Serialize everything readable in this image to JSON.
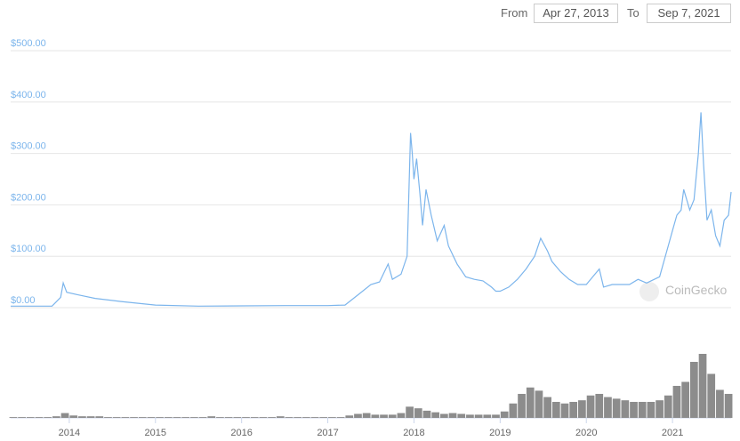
{
  "header": {
    "from_label": "From",
    "from_date": "Apr 27, 2013",
    "to_label": "To",
    "to_date": "Sep 7, 2021"
  },
  "chart_data": {
    "type": "line",
    "watermark": "CoinGecko",
    "xlim": [
      2013.32,
      2021.68
    ],
    "xticks": [
      2014,
      2015,
      2016,
      2017,
      2018,
      2019,
      2020,
      2021
    ],
    "ylim": [
      0,
      500
    ],
    "yticks": [
      {
        "value": 0,
        "label": "$0.00"
      },
      {
        "value": 100,
        "label": "$100.00"
      },
      {
        "value": 200,
        "label": "$200.00"
      },
      {
        "value": 300,
        "label": "$300.00"
      },
      {
        "value": 400,
        "label": "$400.00"
      },
      {
        "value": 500,
        "label": "$500.00"
      }
    ],
    "y2lim": [
      0,
      100
    ],
    "grid": true,
    "series": [
      {
        "type": "line",
        "color": "#7cb5ec",
        "x": [
          2013.32,
          2013.8,
          2013.9,
          2013.93,
          2013.97,
          2014.1,
          2014.3,
          2014.6,
          2015.0,
          2015.5,
          2016.0,
          2016.5,
          2017.0,
          2017.2,
          2017.35,
          2017.5,
          2017.6,
          2017.7,
          2017.75,
          2017.85,
          2017.92,
          2017.96,
          2017.98,
          2018.0,
          2018.03,
          2018.07,
          2018.1,
          2018.14,
          2018.2,
          2018.27,
          2018.35,
          2018.4,
          2018.5,
          2018.6,
          2018.7,
          2018.8,
          2018.9,
          2018.95,
          2019.0,
          2019.1,
          2019.2,
          2019.3,
          2019.4,
          2019.47,
          2019.55,
          2019.6,
          2019.7,
          2019.8,
          2019.9,
          2020.0,
          2020.1,
          2020.15,
          2020.2,
          2020.3,
          2020.5,
          2020.6,
          2020.7,
          2020.85,
          2020.95,
          2021.0,
          2021.05,
          2021.1,
          2021.13,
          2021.2,
          2021.25,
          2021.3,
          2021.33,
          2021.36,
          2021.4,
          2021.45,
          2021.5,
          2021.55,
          2021.6,
          2021.65,
          2021.68
        ],
        "values": [
          3,
          3,
          20,
          48,
          30,
          25,
          18,
          12,
          5,
          3,
          3.5,
          4,
          4,
          5,
          25,
          45,
          50,
          85,
          55,
          65,
          100,
          340,
          300,
          250,
          290,
          220,
          160,
          230,
          180,
          130,
          160,
          120,
          85,
          60,
          55,
          52,
          40,
          32,
          32,
          40,
          55,
          75,
          100,
          135,
          110,
          90,
          70,
          55,
          45,
          45,
          65,
          75,
          40,
          45,
          45,
          55,
          48,
          60,
          120,
          150,
          180,
          190,
          230,
          190,
          210,
          300,
          380,
          280,
          170,
          190,
          140,
          120,
          170,
          180,
          225
        ]
      },
      {
        "type": "bar",
        "axis": "y2",
        "color": "#8c8c8c",
        "x": [
          2013.35,
          2013.45,
          2013.55,
          2013.65,
          2013.75,
          2013.85,
          2013.95,
          2014.05,
          2014.15,
          2014.25,
          2014.35,
          2014.45,
          2014.55,
          2014.65,
          2014.75,
          2014.85,
          2014.95,
          2015.05,
          2015.15,
          2015.25,
          2015.35,
          2015.45,
          2015.55,
          2015.65,
          2015.75,
          2015.85,
          2015.95,
          2016.05,
          2016.15,
          2016.25,
          2016.35,
          2016.45,
          2016.55,
          2016.65,
          2016.75,
          2016.85,
          2016.95,
          2017.05,
          2017.15,
          2017.25,
          2017.35,
          2017.45,
          2017.55,
          2017.65,
          2017.75,
          2017.85,
          2017.95,
          2018.05,
          2018.15,
          2018.25,
          2018.35,
          2018.45,
          2018.55,
          2018.65,
          2018.75,
          2018.85,
          2018.95,
          2019.05,
          2019.15,
          2019.25,
          2019.35,
          2019.45,
          2019.55,
          2019.65,
          2019.75,
          2019.85,
          2019.95,
          2020.05,
          2020.15,
          2020.25,
          2020.35,
          2020.45,
          2020.55,
          2020.65,
          2020.75,
          2020.85,
          2020.95,
          2021.05,
          2021.15,
          2021.25,
          2021.35,
          2021.45,
          2021.55,
          2021.65
        ],
        "values": [
          1,
          1,
          1,
          1,
          1,
          2,
          6,
          3,
          2,
          2,
          2,
          1,
          1,
          1,
          1,
          1,
          1,
          1,
          1,
          1,
          1,
          1,
          1,
          2,
          1,
          1,
          1,
          1,
          1,
          1,
          1,
          2,
          1,
          1,
          1,
          1,
          1,
          1,
          1,
          3,
          5,
          6,
          4,
          4,
          4,
          6,
          14,
          12,
          9,
          7,
          5,
          6,
          5,
          4,
          4,
          4,
          4,
          8,
          18,
          30,
          38,
          34,
          26,
          20,
          18,
          20,
          22,
          28,
          30,
          26,
          24,
          22,
          20,
          20,
          20,
          22,
          28,
          40,
          45,
          70,
          80,
          55,
          35,
          30
        ]
      }
    ]
  }
}
